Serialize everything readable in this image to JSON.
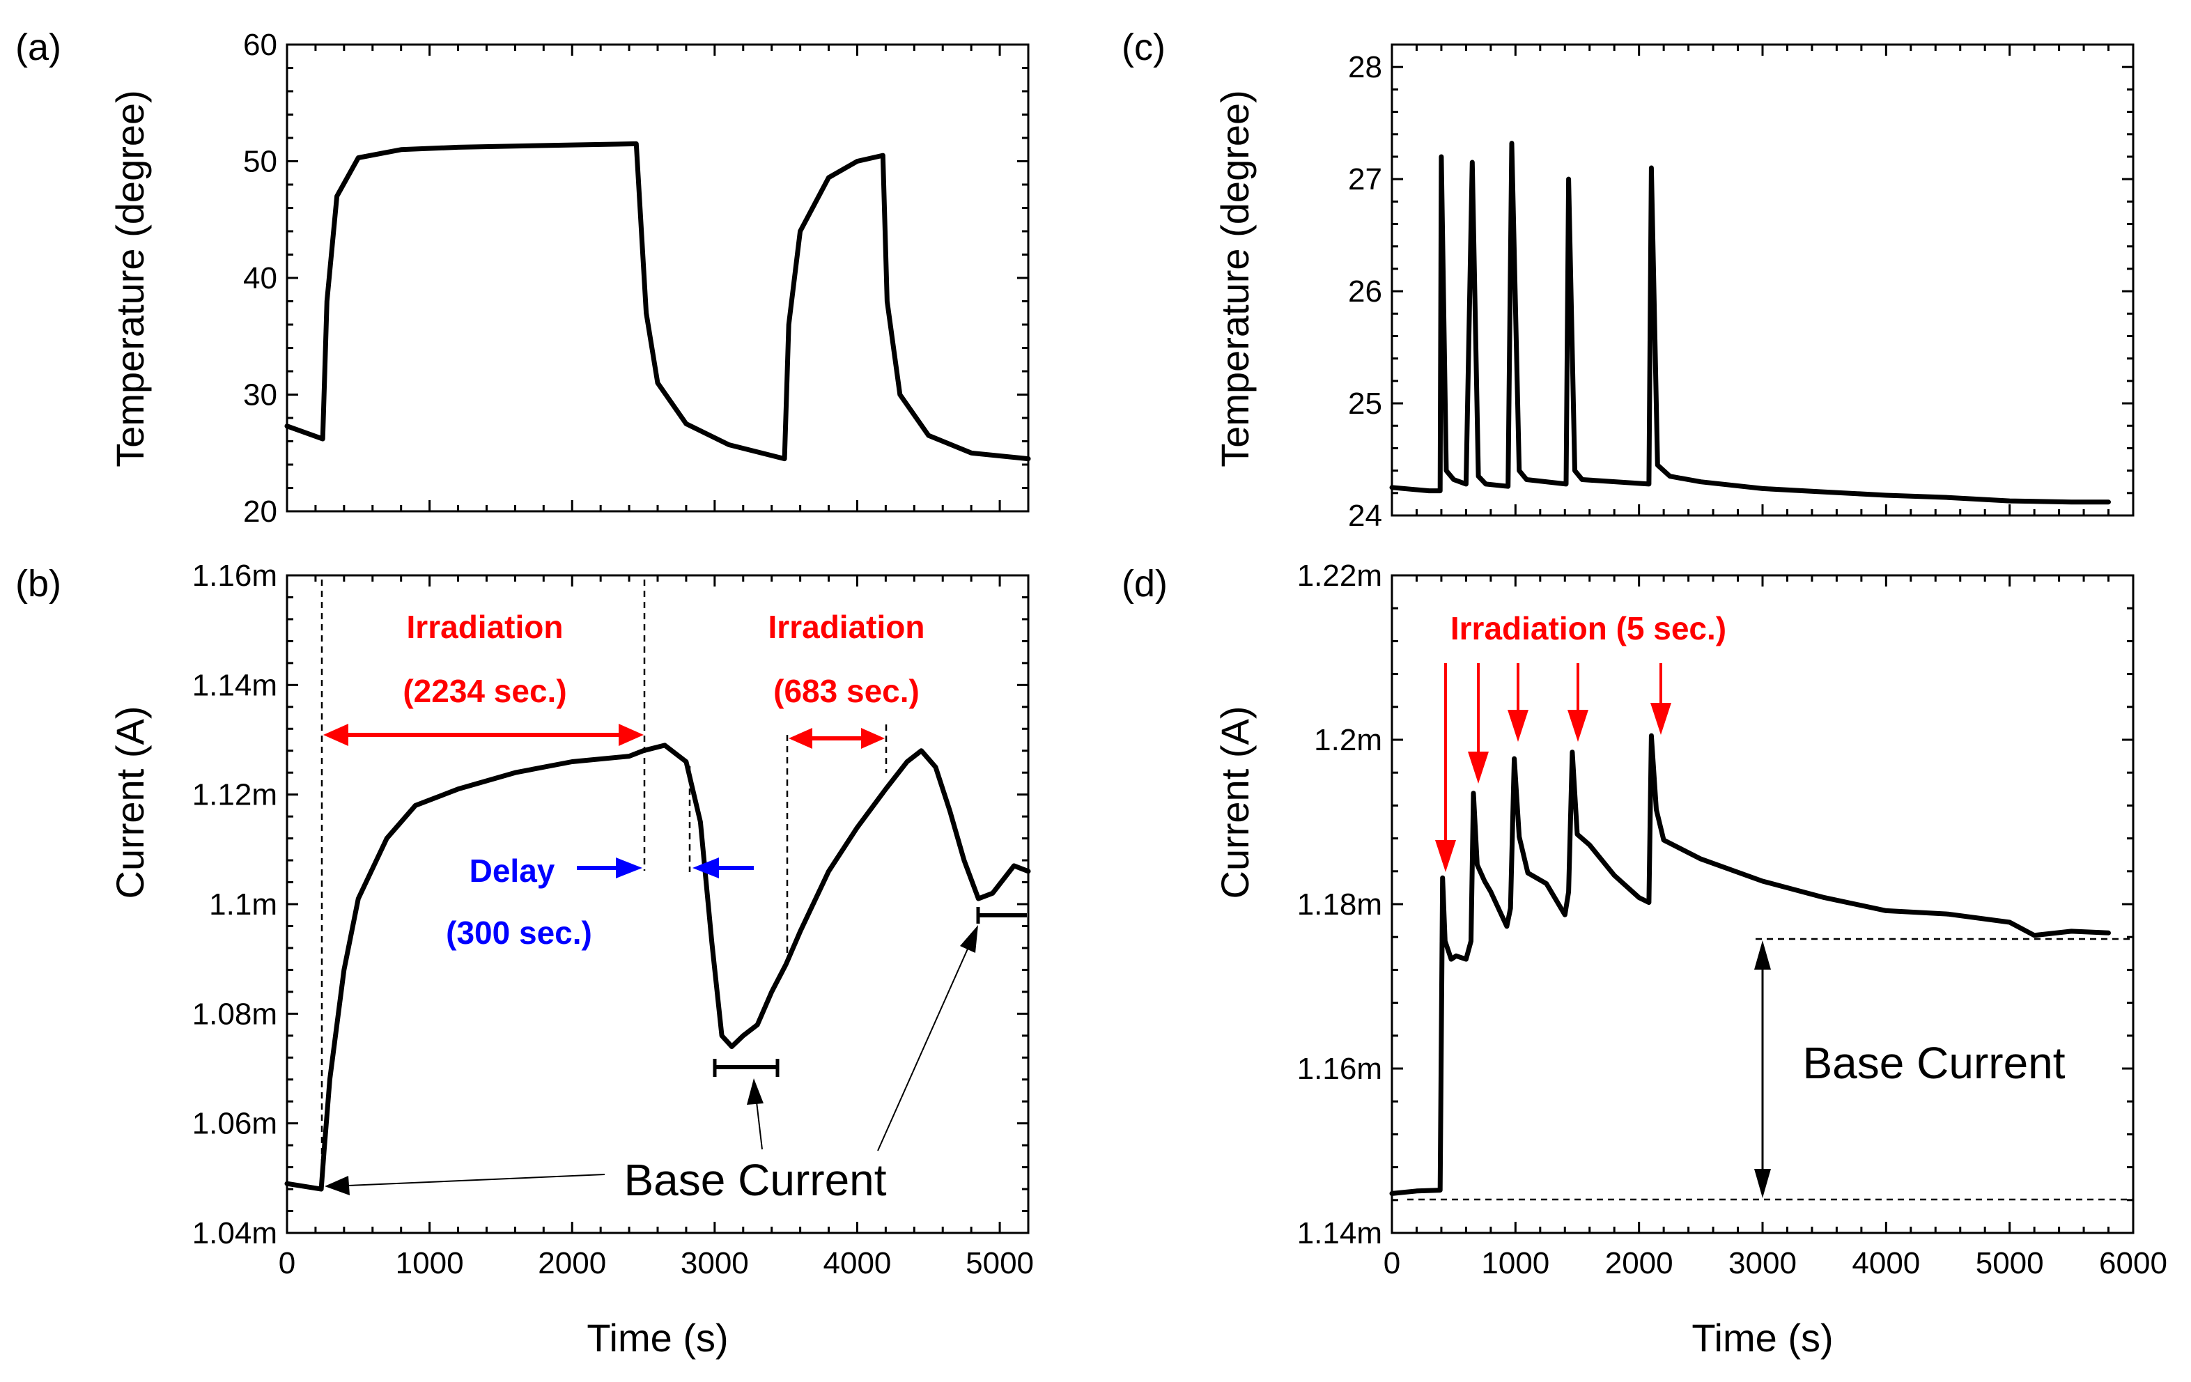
{
  "colors": {
    "line": "#000000",
    "irradiation": "#ff0000",
    "delay": "#0000ff"
  },
  "chart_data": [
    {
      "panel": "(a)",
      "type": "line",
      "xlabel": "",
      "ylabel": "Temperature (degree)",
      "xlim": [
        0,
        5200
      ],
      "ylim": [
        20,
        60
      ],
      "yticks": [
        "20",
        "30",
        "40",
        "50",
        "60"
      ],
      "grid": false,
      "x": [
        0,
        250,
        280,
        350,
        500,
        800,
        1200,
        2000,
        2450,
        2520,
        2600,
        2800,
        3100,
        3490,
        3520,
        3600,
        3800,
        4000,
        4180,
        4210,
        4300,
        4500,
        4800,
        5200
      ],
      "y": [
        27.3,
        26.2,
        38.0,
        47.0,
        50.3,
        51.0,
        51.2,
        51.4,
        51.5,
        37.0,
        31.0,
        27.5,
        25.7,
        24.5,
        36.0,
        44.0,
        48.6,
        50.0,
        50.5,
        38.0,
        30.0,
        26.5,
        25.0,
        24.5
      ]
    },
    {
      "panel": "(b)",
      "type": "line",
      "xlabel": "Time (s)",
      "ylabel": "Current (A)",
      "xlim": [
        0,
        5200
      ],
      "ylim": [
        1.04,
        1.16
      ],
      "yunit": "m",
      "xticks": [
        "0",
        "1000",
        "2000",
        "3000",
        "4000",
        "5000"
      ],
      "yticks": [
        "1.04m",
        "1.06m",
        "1.08m",
        "1.1m",
        "1.12m",
        "1.14m",
        "1.16m"
      ],
      "grid": false,
      "x": [
        0,
        240,
        260,
        300,
        400,
        500,
        700,
        900,
        1200,
        1600,
        2000,
        2400,
        2500,
        2650,
        2800,
        2900,
        2980,
        3050,
        3120,
        3200,
        3300,
        3400,
        3500,
        3600,
        3800,
        4000,
        4200,
        4350,
        4450,
        4550,
        4650,
        4750,
        4850,
        4950,
        5100,
        5200
      ],
      "y": [
        1.049,
        1.048,
        1.055,
        1.068,
        1.088,
        1.101,
        1.112,
        1.118,
        1.121,
        1.124,
        1.126,
        1.127,
        1.128,
        1.129,
        1.126,
        1.115,
        1.093,
        1.076,
        1.074,
        1.076,
        1.078,
        1.084,
        1.089,
        1.095,
        1.106,
        1.114,
        1.121,
        1.126,
        1.128,
        1.125,
        1.117,
        1.108,
        1.101,
        1.102,
        1.107,
        1.106
      ]
    },
    {
      "panel": "(c)",
      "type": "line",
      "xlabel": "",
      "ylabel": "Temperature (degree)",
      "xlim": [
        0,
        6000
      ],
      "ylim": [
        23.8,
        28
      ],
      "yticks": [
        "24",
        "25",
        "26",
        "27",
        "28"
      ],
      "grid": false,
      "x": [
        0,
        300,
        390,
        400,
        440,
        500,
        600,
        650,
        700,
        760,
        940,
        970,
        1030,
        1090,
        1410,
        1430,
        1480,
        1540,
        2080,
        2100,
        2150,
        2250,
        2500,
        3000,
        3500,
        4000,
        4500,
        5000,
        5500,
        5800
      ],
      "y": [
        24.05,
        24.02,
        24.02,
        27.0,
        24.2,
        24.12,
        24.08,
        26.95,
        24.15,
        24.08,
        24.06,
        27.12,
        24.2,
        24.12,
        24.08,
        26.8,
        24.2,
        24.12,
        24.08,
        26.9,
        24.25,
        24.15,
        24.1,
        24.04,
        24.01,
        23.98,
        23.96,
        23.93,
        23.92,
        23.92
      ]
    },
    {
      "panel": "(d)",
      "type": "line",
      "xlabel": "Time (s)",
      "ylabel": "Current (A)",
      "xlim": [
        0,
        6000
      ],
      "ylim": [
        1.14,
        1.22
      ],
      "yunit": "m",
      "xticks": [
        "0",
        "1000",
        "2000",
        "3000",
        "4000",
        "5000",
        "6000"
      ],
      "yticks": [
        "1.14m",
        "1.16m",
        "1.18m",
        "1.2m",
        "1.22m"
      ],
      "grid": false,
      "x": [
        0,
        200,
        390,
        410,
        430,
        480,
        520,
        600,
        640,
        660,
        690,
        750,
        800,
        930,
        960,
        990,
        1030,
        1100,
        1250,
        1400,
        1430,
        1460,
        1500,
        1600,
        1800,
        2000,
        2080,
        2100,
        2140,
        2200,
        2500,
        3000,
        3500,
        4000,
        4500,
        5000,
        5200,
        5500,
        5800
      ],
      "y": [
        1.1448,
        1.1451,
        1.1452,
        1.1832,
        1.1755,
        1.1733,
        1.1737,
        1.1733,
        1.1755,
        1.1935,
        1.1848,
        1.1828,
        1.1815,
        1.1773,
        1.1795,
        1.1977,
        1.1882,
        1.1838,
        1.1825,
        1.1787,
        1.1815,
        1.1985,
        1.1885,
        1.1872,
        1.1835,
        1.1808,
        1.1802,
        1.2005,
        1.1915,
        1.1878,
        1.1855,
        1.1828,
        1.1808,
        1.1792,
        1.1788,
        1.1778,
        1.1762,
        1.1767,
        1.1765
      ]
    }
  ],
  "annotations": {
    "b": {
      "irradiation_1": "Irradiation",
      "irradiation_1_duration": "(2234 sec.)",
      "irradiation_2": "Irradiation",
      "irradiation_2_duration": "(683 sec.)",
      "delay": "Delay",
      "delay_duration": "(300 sec.)",
      "base_current": "Base Current"
    },
    "d": {
      "irradiation": "Irradiation (5 sec.)",
      "base_current": "Base Current"
    }
  }
}
